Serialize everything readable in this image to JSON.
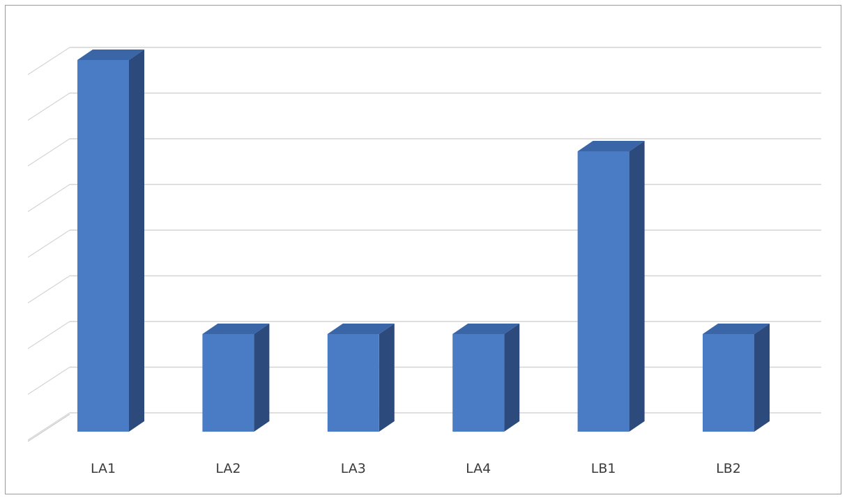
{
  "chart_data": {
    "type": "bar",
    "style": "3d-column",
    "categories": [
      "LA1",
      "LA2",
      "LA3",
      "LA4",
      "LB1",
      "LB2"
    ],
    "values": [
      8,
      2,
      2,
      2,
      6,
      2
    ],
    "ylim": [
      0,
      8
    ],
    "grid": true,
    "colors": {
      "front": "#4a7cc6",
      "side": "#2c4b7c",
      "top": "#3a65a6",
      "grid": "#d4d4d4",
      "floor": "#c9c9c9"
    }
  }
}
